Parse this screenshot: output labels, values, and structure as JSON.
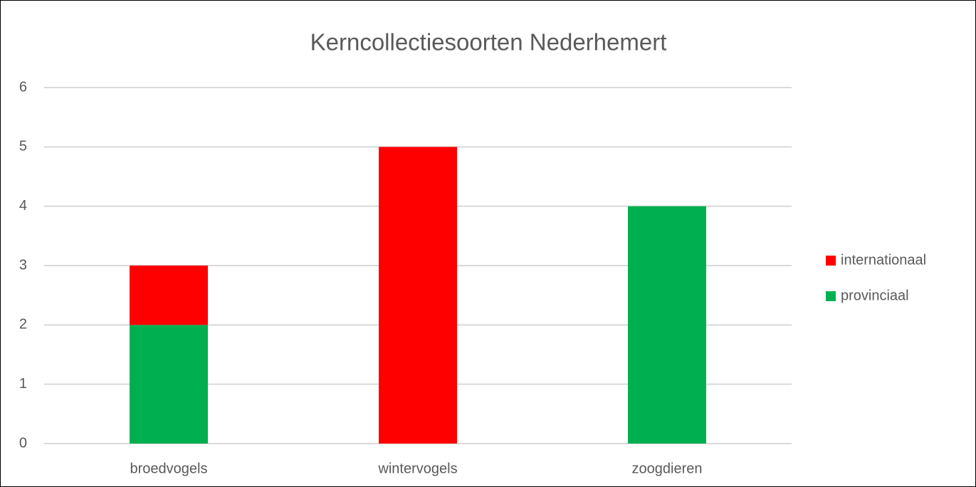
{
  "chart_data": {
    "type": "stacked_bar",
    "title": "Kerncollectiesoorten Nederhemert",
    "categories": [
      "broedvogels",
      "wintervogels",
      "zoogdieren"
    ],
    "series": [
      {
        "name": "internationaal",
        "color": "#ff0000",
        "values": [
          1,
          5,
          0
        ]
      },
      {
        "name": "provinciaal",
        "color": "#00b050",
        "values": [
          2,
          0,
          4
        ]
      }
    ],
    "ylim": [
      0,
      6
    ],
    "yticks": [
      0,
      1,
      2,
      3,
      4,
      5,
      6
    ],
    "grid": true,
    "legend": "right"
  }
}
